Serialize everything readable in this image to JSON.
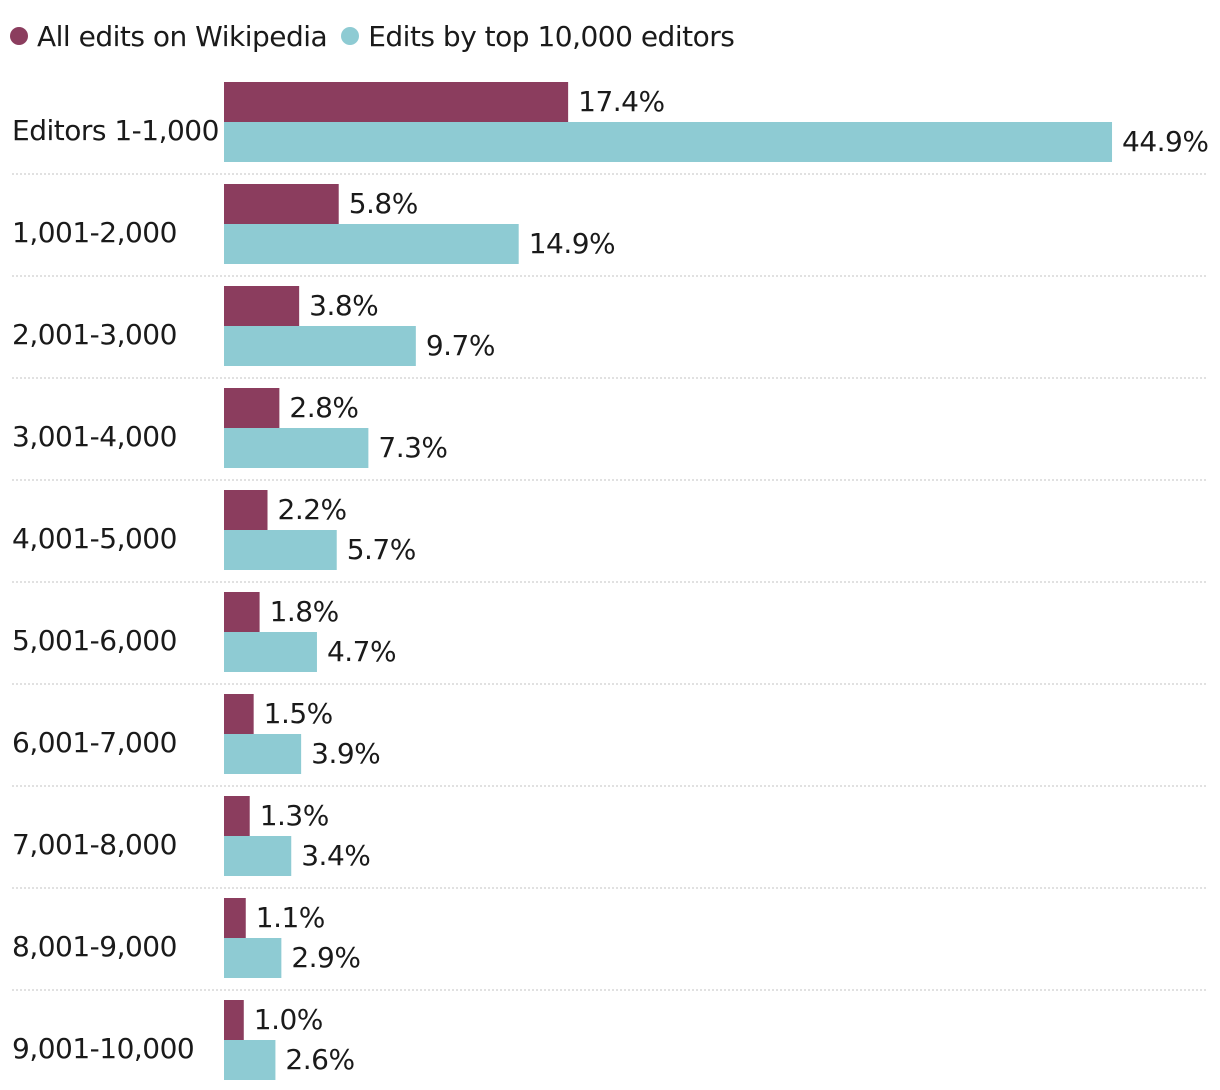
{
  "chart_data": {
    "type": "bar",
    "orientation": "horizontal",
    "categories": [
      "Editors 1-1,000",
      "1,001-2,000",
      "2,001-3,000",
      "3,001-4,000",
      "4,001-5,000",
      "5,001-6,000",
      "6,001-7,000",
      "7,001-8,000",
      "8,001-9,000",
      "9,001-10,000"
    ],
    "series": [
      {
        "name": "All edits on Wikipedia",
        "color": "#8b3d5e",
        "values": [
          17.4,
          5.8,
          3.8,
          2.8,
          2.2,
          1.8,
          1.5,
          1.3,
          1.1,
          1.0
        ],
        "labels": [
          "17.4%",
          "5.8%",
          "3.8%",
          "2.8%",
          "2.2%",
          "1.8%",
          "1.5%",
          "1.3%",
          "1.1%",
          "1.0%"
        ]
      },
      {
        "name": "Edits by top 10,000 editors",
        "color": "#8ecbd3",
        "values": [
          44.9,
          14.9,
          9.7,
          7.3,
          5.7,
          4.7,
          3.9,
          3.4,
          2.9,
          2.6
        ],
        "labels": [
          "44.9%",
          "14.9%",
          "9.7%",
          "7.3%",
          "5.7%",
          "4.7%",
          "3.9%",
          "3.4%",
          "2.9%",
          "2.6%"
        ]
      }
    ],
    "xlim": [
      0,
      45
    ],
    "grid": false,
    "legend_position": "top-left",
    "title": "",
    "xlabel": "",
    "ylabel": ""
  }
}
